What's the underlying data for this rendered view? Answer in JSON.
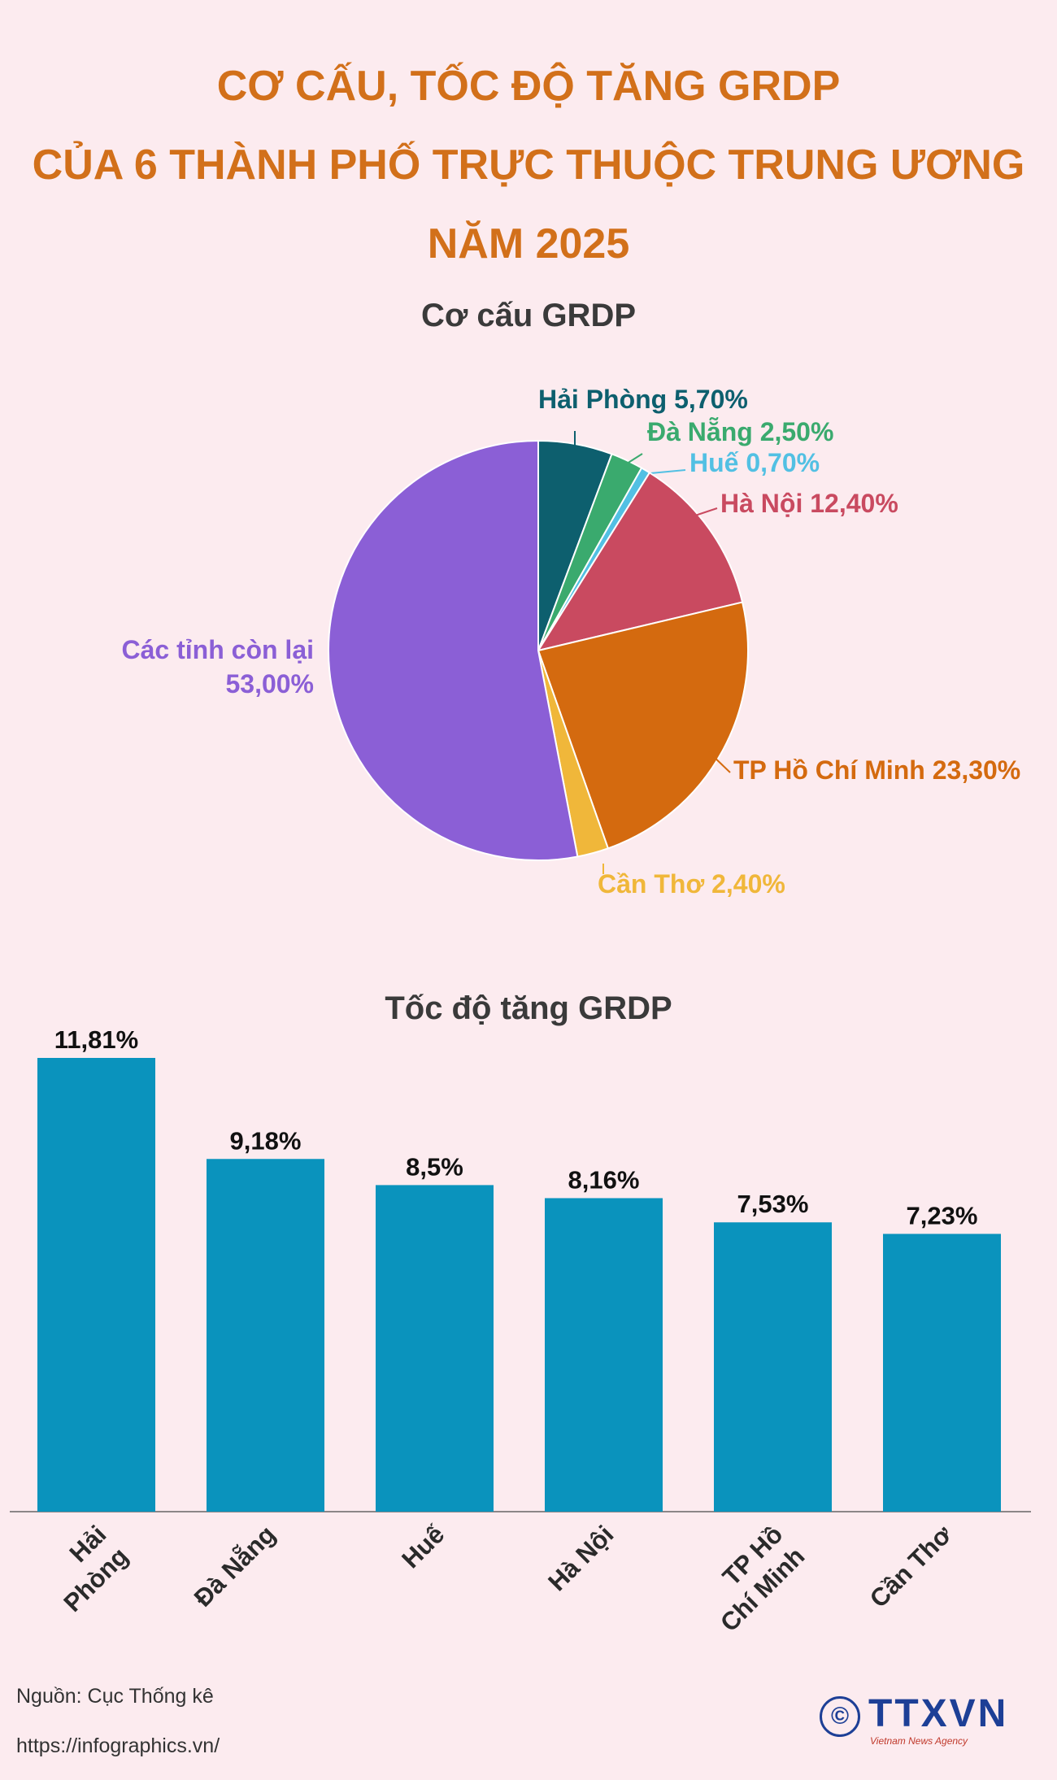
{
  "title_lines": [
    "CƠ CẤU, TỐC ĐỘ TĂNG GRDP",
    "CỦA 6 THÀNH PHỐ TRỰC THUỘC TRUNG ƯƠNG",
    "NĂM 2025"
  ],
  "footer": {
    "source": "Nguồn: Cục Thống kê",
    "url": "https://infographics.vn/",
    "logo_text": "TTXVN",
    "logo_sub": "Vietnam News Agency",
    "copyright": "©"
  },
  "chart_data": [
    {
      "type": "pie",
      "title": "Cơ cấu GRDP",
      "slices": [
        {
          "label": "Hải Phòng",
          "value": 5.7,
          "display": "Hải Phòng 5,70%",
          "color": "#0d5f6e"
        },
        {
          "label": "Đà Nẵng",
          "value": 2.5,
          "display": "Đà Nẵng 2,50%",
          "color": "#3aaa6e"
        },
        {
          "label": "Huế",
          "value": 0.7,
          "display": "Huế 0,70%",
          "color": "#52c0e3"
        },
        {
          "label": "Hà Nội",
          "value": 12.4,
          "display": "Hà Nội 12,40%",
          "color": "#c94a60"
        },
        {
          "label": "TP Hồ Chí Minh",
          "value": 23.3,
          "display": "TP Hồ Chí Minh 23,30%",
          "color": "#d46a0f"
        },
        {
          "label": "Cần Thơ",
          "value": 2.4,
          "display": "Cần Thơ 2,40%",
          "color": "#f0b73a"
        },
        {
          "label": "Các tỉnh còn lại",
          "value": 53.0,
          "display_lines": [
            "Các tỉnh còn lại",
            "53,00%"
          ],
          "color": "#8b5fd6"
        }
      ]
    },
    {
      "type": "bar",
      "title": "Tốc độ tăng GRDP",
      "categories": [
        [
          "Hải",
          "Phòng"
        ],
        [
          "Đà Nẵng"
        ],
        [
          "Huế"
        ],
        [
          "Hà Nội"
        ],
        [
          "TP Hồ",
          "Chí Minh"
        ],
        [
          "Cần Thơ"
        ]
      ],
      "values": [
        11.81,
        9.18,
        8.5,
        8.16,
        7.53,
        7.23
      ],
      "value_labels": [
        "11,81%",
        "9,18%",
        "8,5%",
        "8,16%",
        "7,53%",
        "7,23%"
      ],
      "bar_color": "#0a93bd"
    }
  ]
}
